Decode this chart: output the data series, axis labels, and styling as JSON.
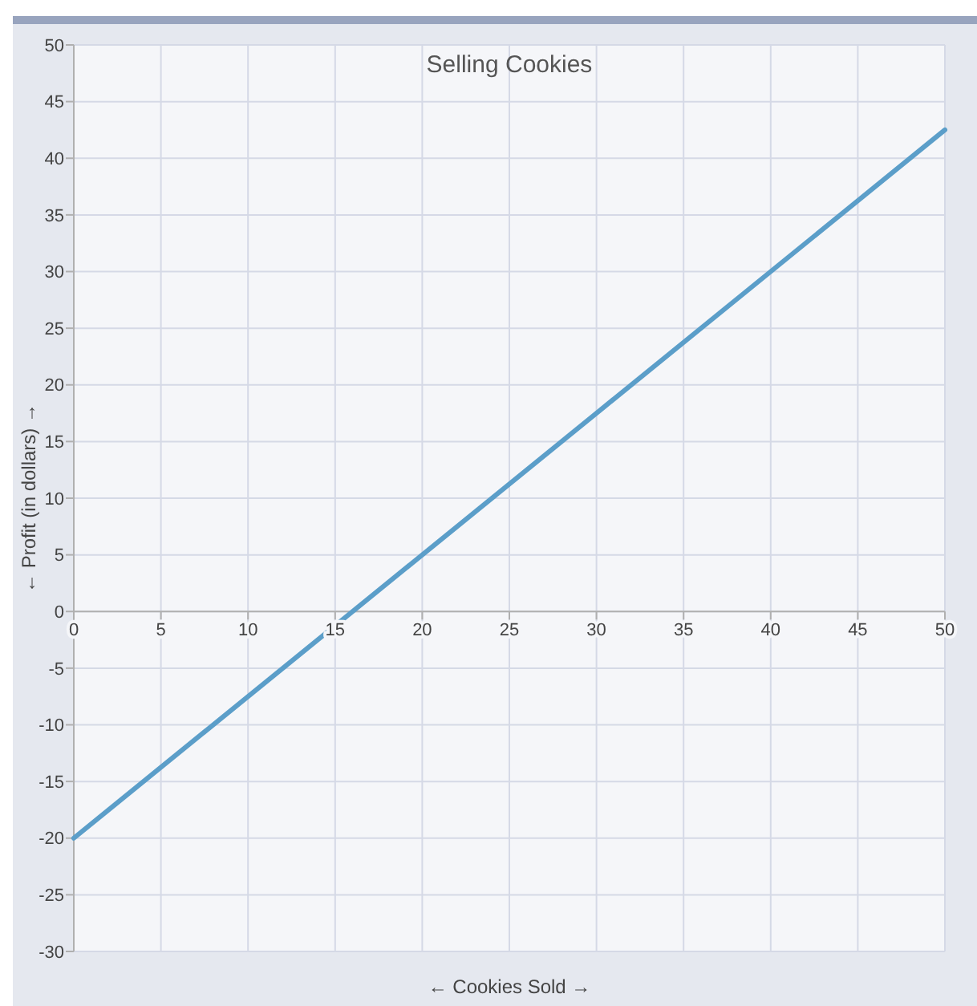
{
  "chart_data": {
    "type": "line",
    "title": "Selling Cookies",
    "xlabel": "← Cookies Sold →",
    "ylabel": "← Profit (in dollars) →",
    "x": [
      0,
      50
    ],
    "series": [
      {
        "color": "#5b9ec9",
        "values": [
          -20,
          42.5
        ]
      }
    ],
    "xlim": [
      0,
      50
    ],
    "ylim": [
      -30,
      50
    ],
    "xticks": [
      0,
      5,
      10,
      15,
      20,
      25,
      30,
      35,
      40,
      45,
      50
    ],
    "yticks": [
      -30,
      -25,
      -20,
      -15,
      -10,
      -5,
      0,
      5,
      10,
      15,
      20,
      25,
      30,
      35,
      40,
      45,
      50
    ],
    "grid": true,
    "marker": "none",
    "line_style": "solid"
  }
}
